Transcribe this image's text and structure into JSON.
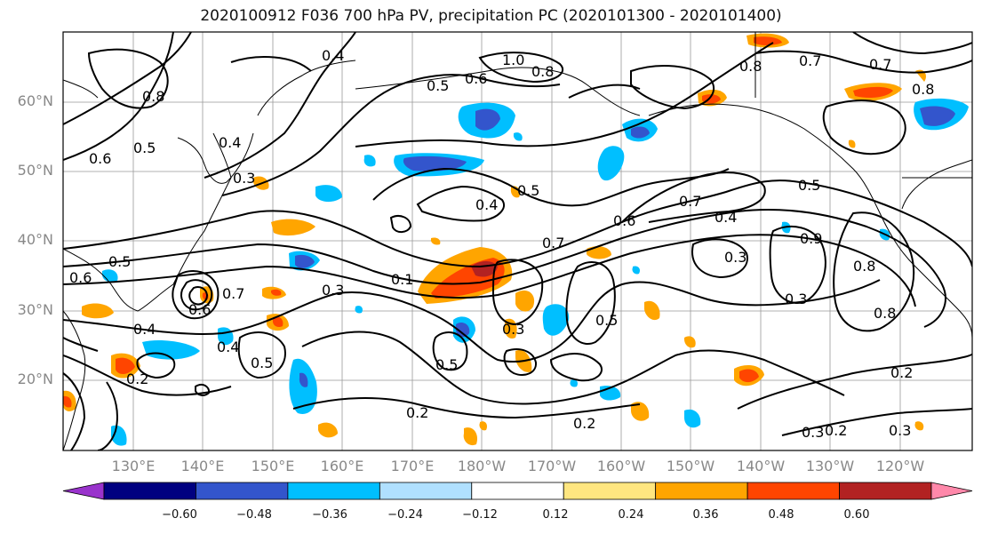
{
  "title": "2020100912 F036 700 hPa PV, precipitation PC (2020101300 - 2020101400)",
  "latitude_labels": [
    "60°N",
    "50°N",
    "40°N",
    "30°N",
    "20°N"
  ],
  "longitude_labels": [
    "130°E",
    "140°E",
    "150°E",
    "160°E",
    "170°E",
    "180°W",
    "170°W",
    "160°W",
    "150°W",
    "140°W",
    "130°W",
    "120°W"
  ],
  "colorbar": {
    "ticks": [
      "−0.60",
      "−0.48",
      "−0.36",
      "−0.24",
      "−0.12",
      "0.12",
      "0.24",
      "0.36",
      "0.48",
      "0.60"
    ],
    "colors": [
      "#9933cc",
      "#000080",
      "#3355cc",
      "#00bfff",
      "#b0e0ff",
      "#ffffff",
      "#ffe680",
      "#ffa500",
      "#ff4500",
      "#b22222",
      "#ff88aa"
    ]
  },
  "contour_labels": [
    "0.4",
    "1.0",
    "0.8",
    "0.5",
    "0.6",
    "0.7",
    "0.8",
    "0.7",
    "0.8",
    "0.5",
    "0.8",
    "0.6",
    "0.3",
    "0.4",
    "0.5",
    "0.4",
    "0.5",
    "0.7",
    "0.4",
    "0.5",
    "0.6",
    "0.7",
    "0.3",
    "0.8",
    "0.9",
    "0.1",
    "0.3",
    "0.7",
    "0.6",
    "0.3",
    "0.8",
    "0.5",
    "0.6",
    "0.4",
    "0.5",
    "0.4",
    "0.3",
    "0.5",
    "0.2",
    "0.2",
    "0.2",
    "0.3",
    "0.2",
    "0.3",
    "0.2"
  ]
}
